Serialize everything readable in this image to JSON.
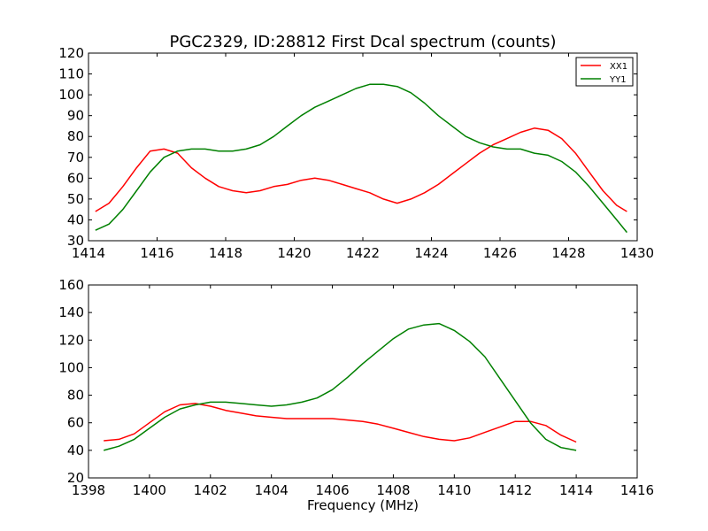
{
  "chart_data": [
    {
      "type": "line",
      "title": "PGC2329, ID:28812 First Dcal spectrum (counts)",
      "xlabel": "",
      "ylabel": "",
      "xlim": [
        1414,
        1430
      ],
      "ylim": [
        30,
        120
      ],
      "xticks": [
        1414,
        1416,
        1418,
        1420,
        1422,
        1424,
        1426,
        1428,
        1430
      ],
      "yticks": [
        30,
        40,
        50,
        60,
        70,
        80,
        90,
        100,
        110,
        120
      ],
      "grid": false,
      "legend": "top-right",
      "series": [
        {
          "name": "XX1",
          "color": "#ff0000",
          "x": [
            1414.2,
            1414.6,
            1415.0,
            1415.4,
            1415.8,
            1416.2,
            1416.6,
            1417.0,
            1417.4,
            1417.8,
            1418.2,
            1418.6,
            1419.0,
            1419.4,
            1419.8,
            1420.2,
            1420.6,
            1421.0,
            1421.4,
            1421.8,
            1422.2,
            1422.6,
            1423.0,
            1423.4,
            1423.8,
            1424.2,
            1424.6,
            1425.0,
            1425.4,
            1425.8,
            1426.2,
            1426.6,
            1427.0,
            1427.4,
            1427.8,
            1428.2,
            1428.6,
            1429.0,
            1429.4,
            1429.7
          ],
          "y": [
            44,
            48,
            56,
            65,
            73,
            74,
            72,
            65,
            60,
            56,
            54,
            53,
            54,
            56,
            57,
            59,
            60,
            59,
            57,
            55,
            53,
            50,
            48,
            50,
            53,
            57,
            62,
            67,
            72,
            76,
            79,
            82,
            84,
            83,
            79,
            72,
            63,
            54,
            47,
            44
          ]
        },
        {
          "name": "YY1",
          "color": "#008000",
          "x": [
            1414.2,
            1414.6,
            1415.0,
            1415.4,
            1415.8,
            1416.2,
            1416.6,
            1417.0,
            1417.4,
            1417.8,
            1418.2,
            1418.6,
            1419.0,
            1419.4,
            1419.8,
            1420.2,
            1420.6,
            1421.0,
            1421.4,
            1421.8,
            1422.2,
            1422.6,
            1423.0,
            1423.4,
            1423.8,
            1424.2,
            1424.6,
            1425.0,
            1425.4,
            1425.8,
            1426.2,
            1426.6,
            1427.0,
            1427.4,
            1427.8,
            1428.2,
            1428.6,
            1429.0,
            1429.4,
            1429.7
          ],
          "y": [
            35,
            38,
            45,
            54,
            63,
            70,
            73,
            74,
            74,
            73,
            73,
            74,
            76,
            80,
            85,
            90,
            94,
            97,
            100,
            103,
            105,
            105,
            104,
            101,
            96,
            90,
            85,
            80,
            77,
            75,
            74,
            74,
            72,
            71,
            68,
            63,
            56,
            48,
            40,
            34
          ]
        }
      ]
    },
    {
      "type": "line",
      "title": "",
      "xlabel": "Frequency (MHz)",
      "ylabel": "",
      "xlim": [
        1398,
        1416
      ],
      "ylim": [
        20,
        160
      ],
      "xticks": [
        1398,
        1400,
        1402,
        1404,
        1406,
        1408,
        1410,
        1412,
        1414,
        1416
      ],
      "yticks": [
        20,
        40,
        60,
        80,
        100,
        120,
        140,
        160
      ],
      "grid": false,
      "legend": "none",
      "series": [
        {
          "name": "XX1",
          "color": "#ff0000",
          "x": [
            1398.5,
            1399.0,
            1399.5,
            1400.0,
            1400.5,
            1401.0,
            1401.5,
            1402.0,
            1402.5,
            1403.0,
            1403.5,
            1404.0,
            1404.5,
            1405.0,
            1405.5,
            1406.0,
            1406.5,
            1407.0,
            1407.5,
            1408.0,
            1408.5,
            1409.0,
            1409.5,
            1410.0,
            1410.5,
            1411.0,
            1411.5,
            1412.0,
            1412.5,
            1413.0,
            1413.5,
            1414.0
          ],
          "y": [
            47,
            48,
            52,
            60,
            68,
            73,
            74,
            72,
            69,
            67,
            65,
            64,
            63,
            63,
            63,
            63,
            62,
            61,
            59,
            56,
            53,
            50,
            48,
            47,
            49,
            53,
            57,
            61,
            61,
            58,
            51,
            46
          ]
        },
        {
          "name": "YY1",
          "color": "#008000",
          "x": [
            1398.5,
            1399.0,
            1399.5,
            1400.0,
            1400.5,
            1401.0,
            1401.5,
            1402.0,
            1402.5,
            1403.0,
            1403.5,
            1404.0,
            1404.5,
            1405.0,
            1405.5,
            1406.0,
            1406.5,
            1407.0,
            1407.5,
            1408.0,
            1408.5,
            1409.0,
            1409.5,
            1410.0,
            1410.5,
            1411.0,
            1411.5,
            1412.0,
            1412.5,
            1413.0,
            1413.5,
            1414.0
          ],
          "y": [
            40,
            43,
            48,
            56,
            64,
            70,
            73,
            75,
            75,
            74,
            73,
            72,
            73,
            75,
            78,
            84,
            93,
            103,
            112,
            121,
            128,
            131,
            132,
            127,
            119,
            108,
            92,
            76,
            60,
            48,
            42,
            40
          ]
        }
      ]
    }
  ]
}
